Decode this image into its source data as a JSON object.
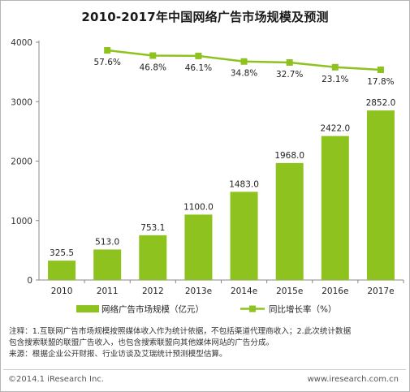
{
  "title": "2010-2017年中国网络广告市场规模及预测",
  "chart_data": {
    "type": "bar",
    "categories": [
      "2010",
      "2011",
      "2012",
      "2013e",
      "2014e",
      "2015e",
      "2016e",
      "2017e"
    ],
    "series": [
      {
        "name": "网络广告市场规模（亿元）",
        "type": "bar",
        "axis": "left",
        "values": [
          325.5,
          513.0,
          753.1,
          1100.0,
          1483.0,
          1968.0,
          2422.0,
          2852.0
        ],
        "labels": [
          "325.5",
          "513.0",
          "753.1",
          "1100.0",
          "1483.0",
          "1968.0",
          "2422.0",
          "2852.0"
        ]
      },
      {
        "name": "同比增长率（%）",
        "type": "line",
        "axis": "right",
        "values": [
          null,
          57.6,
          46.8,
          46.1,
          34.8,
          32.7,
          23.1,
          17.8
        ],
        "labels": [
          "",
          "57.6%",
          "46.8%",
          "46.1%",
          "34.8%",
          "32.7%",
          "23.1%",
          "17.8%"
        ]
      }
    ],
    "ylim": [
      0,
      4000
    ],
    "yticks": [
      "0",
      "1000",
      "2000",
      "3000",
      "4000"
    ],
    "grid": false,
    "legend_position": "bottom"
  },
  "colors": {
    "bar": "#8dc21f",
    "line": "#8dc21f",
    "axis": "#888888"
  },
  "notes": [
    "注释：1.互联网广告市场规模按照媒体收入作为统计依据，不包括渠道代理商收入；2.此次统计数据",
    "包含搜索联盟的联盟广告收入，也包含搜索联盟向其他媒体网站的广告分成。",
    "来源：根据企业公开财报、行业访谈及艾瑞统计预测模型估算。"
  ],
  "footer": {
    "copyright": "©2014.1 iResearch Inc.",
    "url": "www.iresearch.com.cn"
  }
}
